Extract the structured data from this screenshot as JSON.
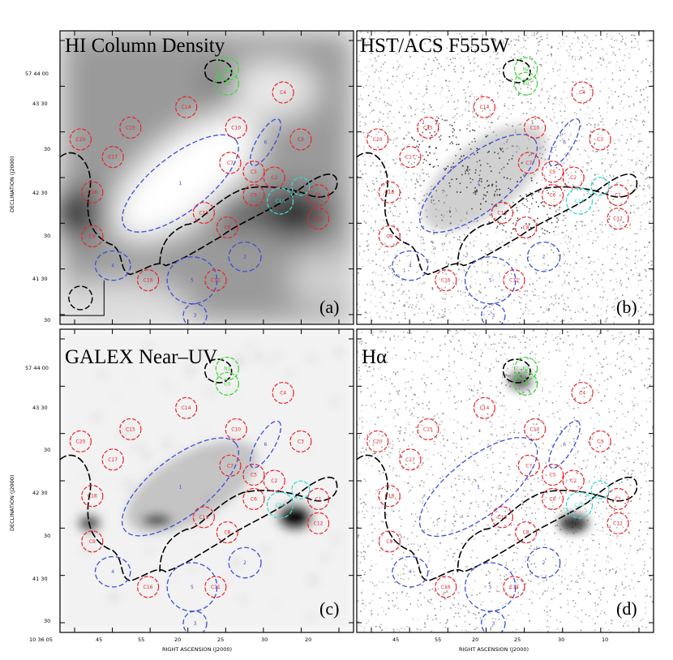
{
  "figure": {
    "panels": [
      {
        "id": "a",
        "title": "HI Column Density",
        "label": "(a)",
        "style": "hi"
      },
      {
        "id": "b",
        "title": "HST/ACS F555W",
        "label": "(b)",
        "style": "hst"
      },
      {
        "id": "c",
        "title": "GALEX Near–UV",
        "label": "(c)",
        "style": "galex"
      },
      {
        "id": "d",
        "title": "Hα",
        "label": "(d)",
        "style": "halpha"
      }
    ],
    "axes": {
      "ylabel_top": "DECLINATION (J2000)",
      "ylabel_bottom": "DECLINATION (J2000)",
      "xlabel_left": "RIGHT ASCENSION (J2000)",
      "xlabel_right": "RIGHT ASCENSION (J2000)",
      "yticks": [
        "57 44 00",
        "43 30",
        "30",
        "42 30",
        "30",
        "41 30",
        "30"
      ],
      "xticks_left": [
        "10 36 05",
        "45",
        "55",
        "20",
        "25",
        "30",
        "20"
      ],
      "xticks_right": [
        "",
        "45",
        "55",
        "20",
        "25",
        "30",
        "10"
      ]
    },
    "regions": {
      "red": [
        "C14",
        "C4",
        "C15",
        "C10",
        "C3",
        "C20",
        "C17",
        "C7",
        "C2",
        "C5",
        "C6",
        "C18",
        "C1",
        "C13",
        "C8",
        "C12",
        "C9",
        "C16",
        "C11"
      ],
      "blue": [
        "1",
        "6",
        "2",
        "5",
        "4",
        "3"
      ],
      "cyan": [
        "C1A"
      ],
      "green": [
        "N2",
        "C0"
      ]
    },
    "colors": {
      "red": "#e8242a",
      "blue": "#3a4fd6",
      "cyan": "#39d8d2",
      "green": "#3ed83a",
      "contour": "#000000"
    }
  }
}
